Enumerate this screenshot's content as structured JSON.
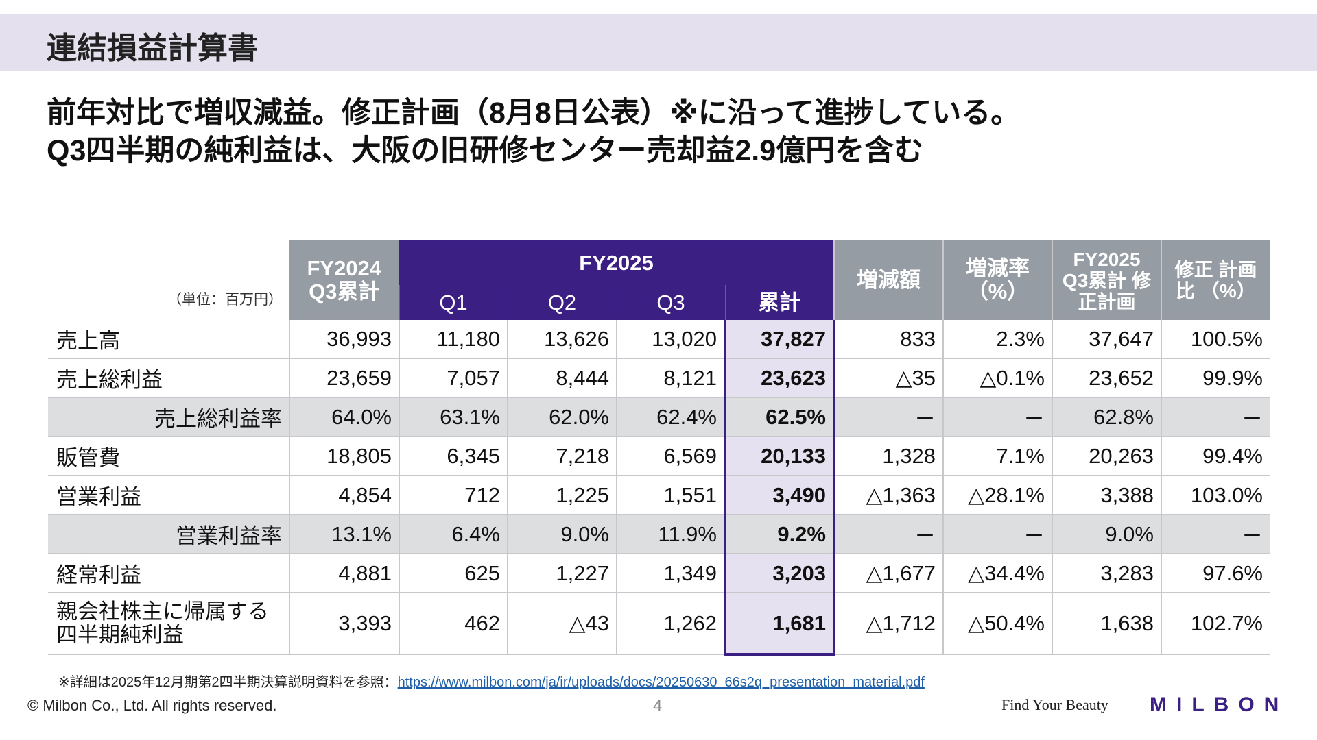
{
  "title": "連結損益計算書",
  "headline": [
    "前年対比で増収減益。修正計画（8月8日公表）※に沿って進捗している。",
    "Q3四半期の純利益は、大阪の旧研修センター売却益2.9億円を含む"
  ],
  "table": {
    "unit": "（単位：百万円）",
    "header": {
      "fy2024": "FY2024 Q3累計",
      "fy2025": "FY2025",
      "q1": "Q1",
      "q2": "Q2",
      "q3": "Q3",
      "cum": "累計",
      "diff": "増減額",
      "rate": "増減率 （%）",
      "plan": "FY2025 Q3累計 修正計画",
      "plan_ratio": "修正 計画比 （%）"
    },
    "rows": [
      {
        "label": "売上高",
        "values": [
          "36,993",
          "11,180",
          "13,626",
          "13,020",
          "37,827",
          "833",
          "2.3%",
          "37,647",
          "100.5%"
        ]
      },
      {
        "label": "売上総利益",
        "values": [
          "23,659",
          "7,057",
          "8,444",
          "8,121",
          "23,623",
          "△35",
          "△0.1%",
          "23,652",
          "99.9%"
        ]
      },
      {
        "label": "売上総利益率",
        "shade": true,
        "values": [
          "64.0%",
          "63.1%",
          "62.0%",
          "62.4%",
          "62.5%",
          "－",
          "－",
          "62.8%",
          "－"
        ]
      },
      {
        "label": "販管費",
        "values": [
          "18,805",
          "6,345",
          "7,218",
          "6,569",
          "20,133",
          "1,328",
          "7.1%",
          "20,263",
          "99.4%"
        ]
      },
      {
        "label": "営業利益",
        "values": [
          "4,854",
          "712",
          "1,225",
          "1,551",
          "3,490",
          "△1,363",
          "△28.1%",
          "3,388",
          "103.0%"
        ]
      },
      {
        "label": "営業利益率",
        "shade": true,
        "values": [
          "13.1%",
          "6.4%",
          "9.0%",
          "11.9%",
          "9.2%",
          "－",
          "－",
          "9.0%",
          "－"
        ]
      },
      {
        "label": "経常利益",
        "values": [
          "4,881",
          "625",
          "1,227",
          "1,349",
          "3,203",
          "△1,677",
          "△34.4%",
          "3,283",
          "97.6%"
        ]
      },
      {
        "label": "親会社株主に帰属する 四半期純利益",
        "tall": true,
        "values": [
          "3,393",
          "462",
          "△43",
          "1,262",
          "1,681",
          "△1,712",
          "△50.4%",
          "1,638",
          "102.7%"
        ]
      }
    ]
  },
  "footnote": {
    "text": "※詳細は2025年12月期第2四半期決算説明資料を参照：",
    "link": "https://www.milbon.com/ja/ir/uploads/docs/20250630_66s2q_presentation_material.pdf"
  },
  "footer": {
    "copyright": "© Milbon Co., Ltd. All rights reserved.",
    "page": "4",
    "tagline": "Find Your Beauty",
    "logo": "MILBON"
  },
  "colors": {
    "brand": "#3b1f82",
    "header_gray": "#969ca3",
    "band": "#e4e0ee"
  }
}
